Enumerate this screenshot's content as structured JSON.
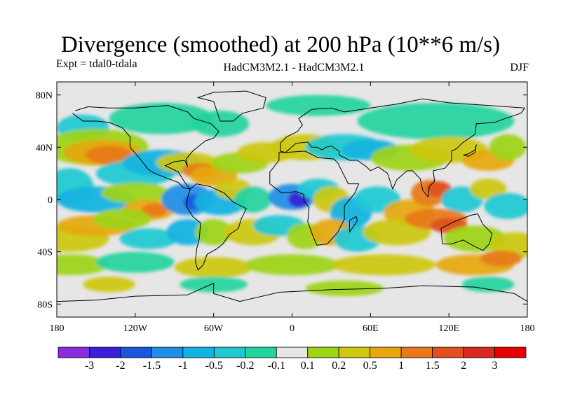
{
  "title": "Divergence (smoothed) at 200 hPa (10**6 m/s)",
  "experiment": "Expt = tdal0-tdala",
  "model_label": "HadCM3M2.1 - HadCM3M2.1",
  "season": "DJF",
  "map": {
    "projection": "equirectangular",
    "lon_range": [
      -180,
      180
    ],
    "lat_range": [
      -90,
      90
    ],
    "lon_ticks": [
      "180",
      "120W",
      "60W",
      "0",
      "60E",
      "120E",
      "180"
    ],
    "lat_ticks": [
      "80N",
      "40N",
      "0",
      "40S",
      "80S"
    ]
  },
  "colorbar": {
    "labels": [
      "-3",
      "-2",
      "-1.5",
      "-1",
      "-0.5",
      "-0.2",
      "-0.1",
      "0.1",
      "0.2",
      "0.5",
      "1",
      "1.5",
      "2",
      "3"
    ],
    "colors": [
      "#8a2be2",
      "#3a1fd8",
      "#1a55dc",
      "#1f8ee6",
      "#12b2e2",
      "#20c9d2",
      "#22d49e",
      "#e6e6e6",
      "#9dd416",
      "#cdc810",
      "#e6a80e",
      "#e8781a",
      "#e0501e",
      "#d82a1e",
      "#e60000"
    ]
  }
}
